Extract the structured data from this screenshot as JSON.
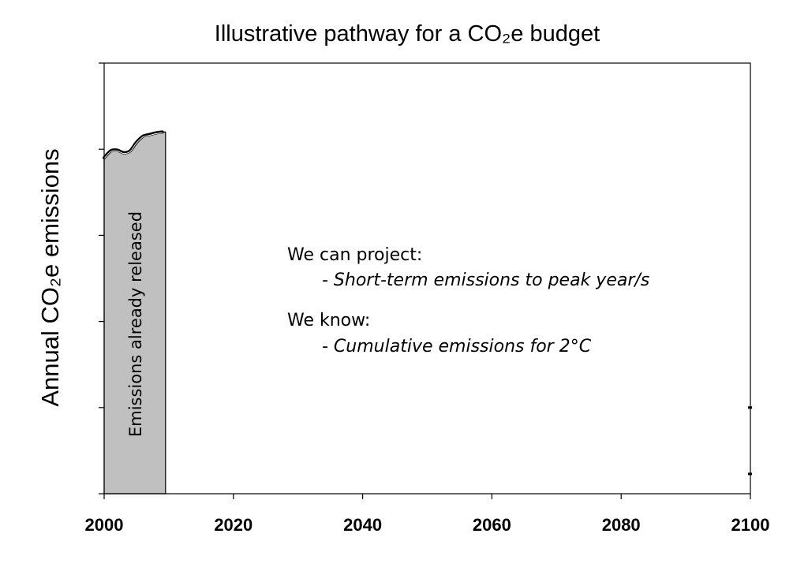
{
  "chart_data": {
    "type": "area",
    "title": "Illustrative pathway for a CO₂e budget",
    "xlabel": "",
    "ylabel": "Annual CO₂e emissions",
    "xlim": [
      2000,
      2100
    ],
    "ylim": [
      0,
      5
    ],
    "x_ticks": [
      "2000",
      "2020",
      "2040",
      "2060",
      "2080",
      "2100"
    ],
    "y_tick_count": 6,
    "y_tick_labels_shown": false,
    "series": [
      {
        "x": [
          2000,
          2001,
          2002,
          2003,
          2004,
          2005,
          2006,
          2007,
          2008,
          2009
        ],
        "values": [
          3.9,
          3.98,
          3.99,
          3.96,
          3.98,
          4.08,
          4.15,
          4.17,
          4.19,
          4.2
        ]
      }
    ],
    "shaded_region": {
      "x_start": 2000,
      "x_end": 2009.5,
      "label": "Emissions already released",
      "color": "#c0c0c0"
    },
    "annotations": [
      {
        "heading": "We can project:",
        "item": "- Short-term emissions to peak year/s"
      },
      {
        "heading": "We know:",
        "item": "- Cumulative emissions for 2°C"
      }
    ],
    "right_axis_marks": [
      1.0,
      0.23
    ],
    "grid": false,
    "legend": "none",
    "colors": {
      "fill": "#c0c0c0",
      "line": "#000000",
      "axis": "#000000"
    }
  }
}
